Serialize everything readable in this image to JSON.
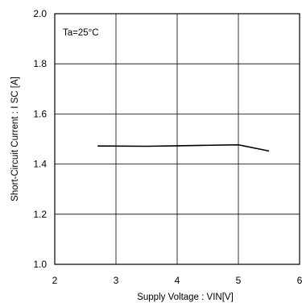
{
  "chart_data": {
    "type": "line",
    "title": "",
    "annotation": "Ta=25°C",
    "xlabel": "Supply Voltage : VIN[V]",
    "ylabel": "Short-Circuit Current : I   SC [A]",
    "xlim": [
      2,
      6
    ],
    "ylim": [
      1.0,
      2.0
    ],
    "x_ticks": [
      "2",
      "3",
      "4",
      "5",
      "6"
    ],
    "y_ticks": [
      "1.0",
      "1.2",
      "1.4",
      "1.6",
      "1.8",
      "2.0"
    ],
    "grid": true,
    "legend": "none",
    "series": [
      {
        "color": "#000000",
        "x": [
          2.7,
          3.5,
          4.0,
          5.0,
          5.5
        ],
        "y": [
          1.472,
          1.471,
          1.473,
          1.477,
          1.452
        ]
      }
    ]
  }
}
